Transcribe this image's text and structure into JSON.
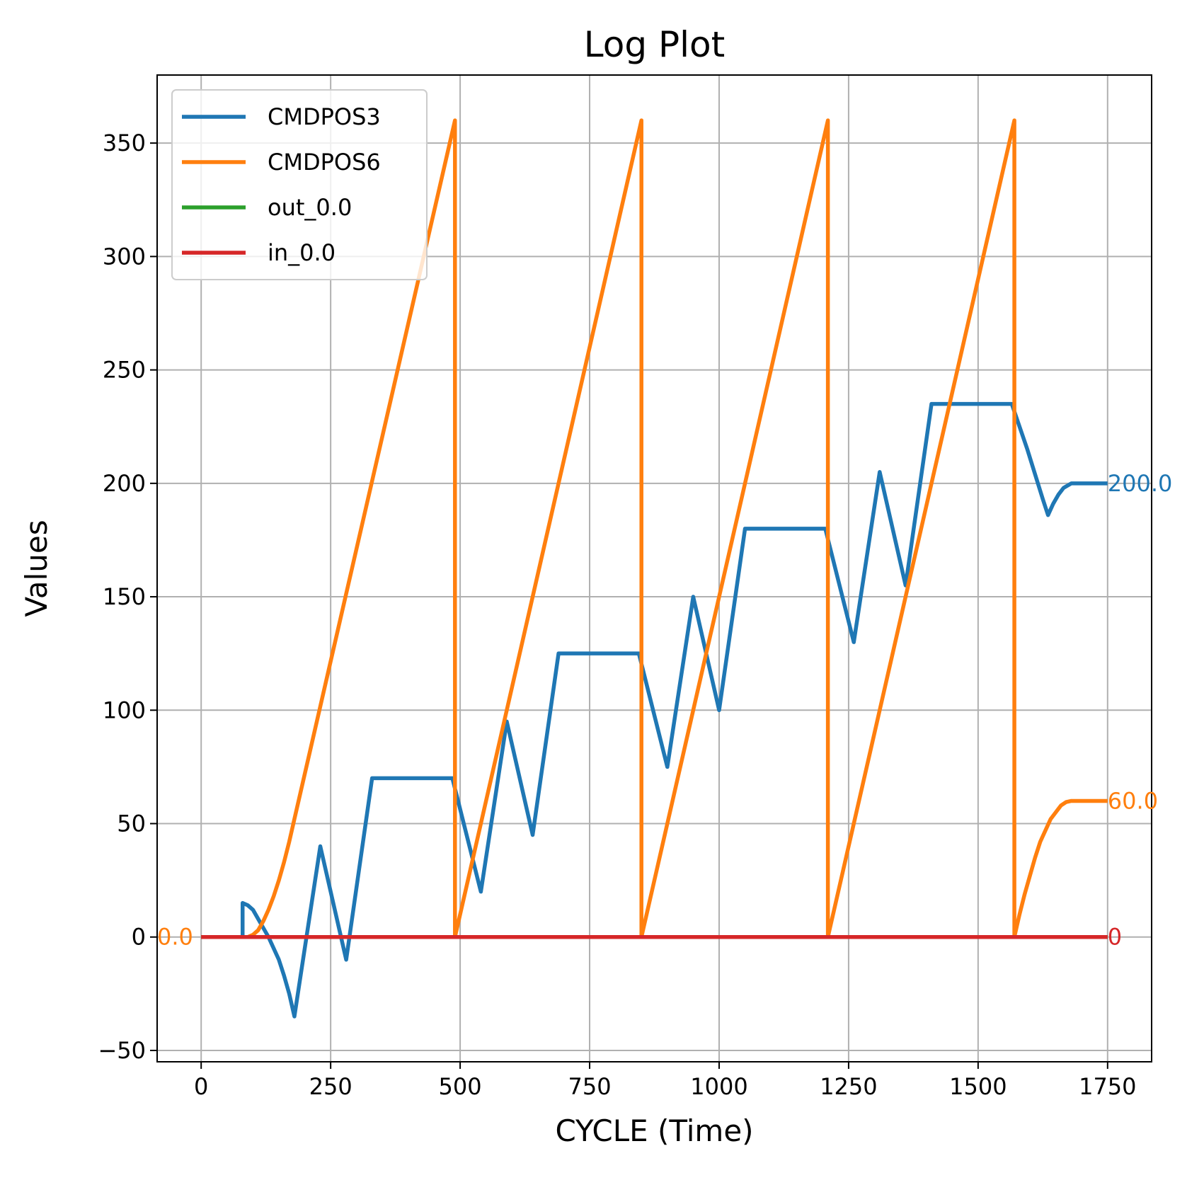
{
  "chart_data": {
    "type": "line",
    "title": "Log Plot",
    "xlabel": "CYCLE (Time)",
    "ylabel": "Values",
    "xlim": [
      -85,
      1835
    ],
    "ylim": [
      -55,
      380
    ],
    "xticks": [
      0,
      250,
      500,
      750,
      1000,
      1250,
      1500,
      1750
    ],
    "yticks": [
      -50,
      0,
      50,
      100,
      150,
      200,
      250,
      300,
      350
    ],
    "xtick_labels": [
      "0",
      "250",
      "500",
      "750",
      "1000",
      "1250",
      "1500",
      "1750"
    ],
    "ytick_labels": [
      "−50",
      "0",
      "50",
      "100",
      "150",
      "200",
      "250",
      "300",
      "350"
    ],
    "grid": true,
    "legend_position": "upper-left",
    "series": [
      {
        "name": "CMDPOS3",
        "color": "#1f77b4",
        "points": [
          [
            0,
            0
          ],
          [
            80,
            0
          ],
          [
            80,
            15
          ],
          [
            90,
            14
          ],
          [
            100,
            12
          ],
          [
            110,
            8
          ],
          [
            120,
            4
          ],
          [
            130,
            0
          ],
          [
            140,
            -5
          ],
          [
            150,
            -10
          ],
          [
            160,
            -17
          ],
          [
            170,
            -25
          ],
          [
            180,
            -35
          ],
          [
            230,
            40
          ],
          [
            280,
            -10
          ],
          [
            330,
            70
          ],
          [
            485,
            70
          ],
          [
            540,
            20
          ],
          [
            590,
            95
          ],
          [
            640,
            45
          ],
          [
            690,
            125
          ],
          [
            845,
            125
          ],
          [
            900,
            75
          ],
          [
            950,
            150
          ],
          [
            1000,
            100
          ],
          [
            1050,
            180
          ],
          [
            1205,
            180
          ],
          [
            1260,
            130
          ],
          [
            1310,
            205
          ],
          [
            1360,
            155
          ],
          [
            1410,
            235
          ],
          [
            1565,
            235
          ],
          [
            1580,
            225
          ],
          [
            1595,
            215
          ],
          [
            1610,
            204
          ],
          [
            1625,
            193
          ],
          [
            1635,
            186
          ],
          [
            1645,
            191
          ],
          [
            1655,
            195
          ],
          [
            1665,
            198
          ],
          [
            1680,
            200
          ],
          [
            1750,
            200
          ]
        ]
      },
      {
        "name": "CMDPOS6",
        "color": "#ff7f0e",
        "points": [
          [
            0,
            0
          ],
          [
            90,
            0
          ],
          [
            100,
            1
          ],
          [
            110,
            3
          ],
          [
            120,
            7
          ],
          [
            130,
            12
          ],
          [
            140,
            18
          ],
          [
            150,
            25
          ],
          [
            160,
            33
          ],
          [
            170,
            42
          ],
          [
            180,
            52
          ],
          [
            490,
            360
          ],
          [
            490,
            0
          ],
          [
            850,
            360
          ],
          [
            850,
            0
          ],
          [
            1210,
            360
          ],
          [
            1210,
            0
          ],
          [
            1570,
            360
          ],
          [
            1570,
            0
          ],
          [
            1580,
            10
          ],
          [
            1590,
            19
          ],
          [
            1600,
            27
          ],
          [
            1610,
            35
          ],
          [
            1620,
            42
          ],
          [
            1630,
            47
          ],
          [
            1640,
            52
          ],
          [
            1650,
            55
          ],
          [
            1660,
            58
          ],
          [
            1670,
            59.5
          ],
          [
            1680,
            60
          ],
          [
            1750,
            60
          ]
        ]
      },
      {
        "name": "out_0.0",
        "color": "#2ca02c",
        "points": [
          [
            0,
            0
          ],
          [
            1750,
            0
          ]
        ]
      },
      {
        "name": "in_0.0",
        "color": "#d62728",
        "points": [
          [
            0,
            0
          ],
          [
            1750,
            0
          ]
        ]
      }
    ],
    "annotations": [
      {
        "text": "0.0",
        "x": -85,
        "y": 0,
        "color": "#ff7f0e"
      },
      {
        "text": "200.0",
        "x": 1750,
        "y": 200,
        "color": "#1f77b4"
      },
      {
        "text": "60.0",
        "x": 1750,
        "y": 60,
        "color": "#ff7f0e"
      },
      {
        "text": "0",
        "x": 1750,
        "y": 0,
        "color": "#d62728"
      }
    ]
  }
}
